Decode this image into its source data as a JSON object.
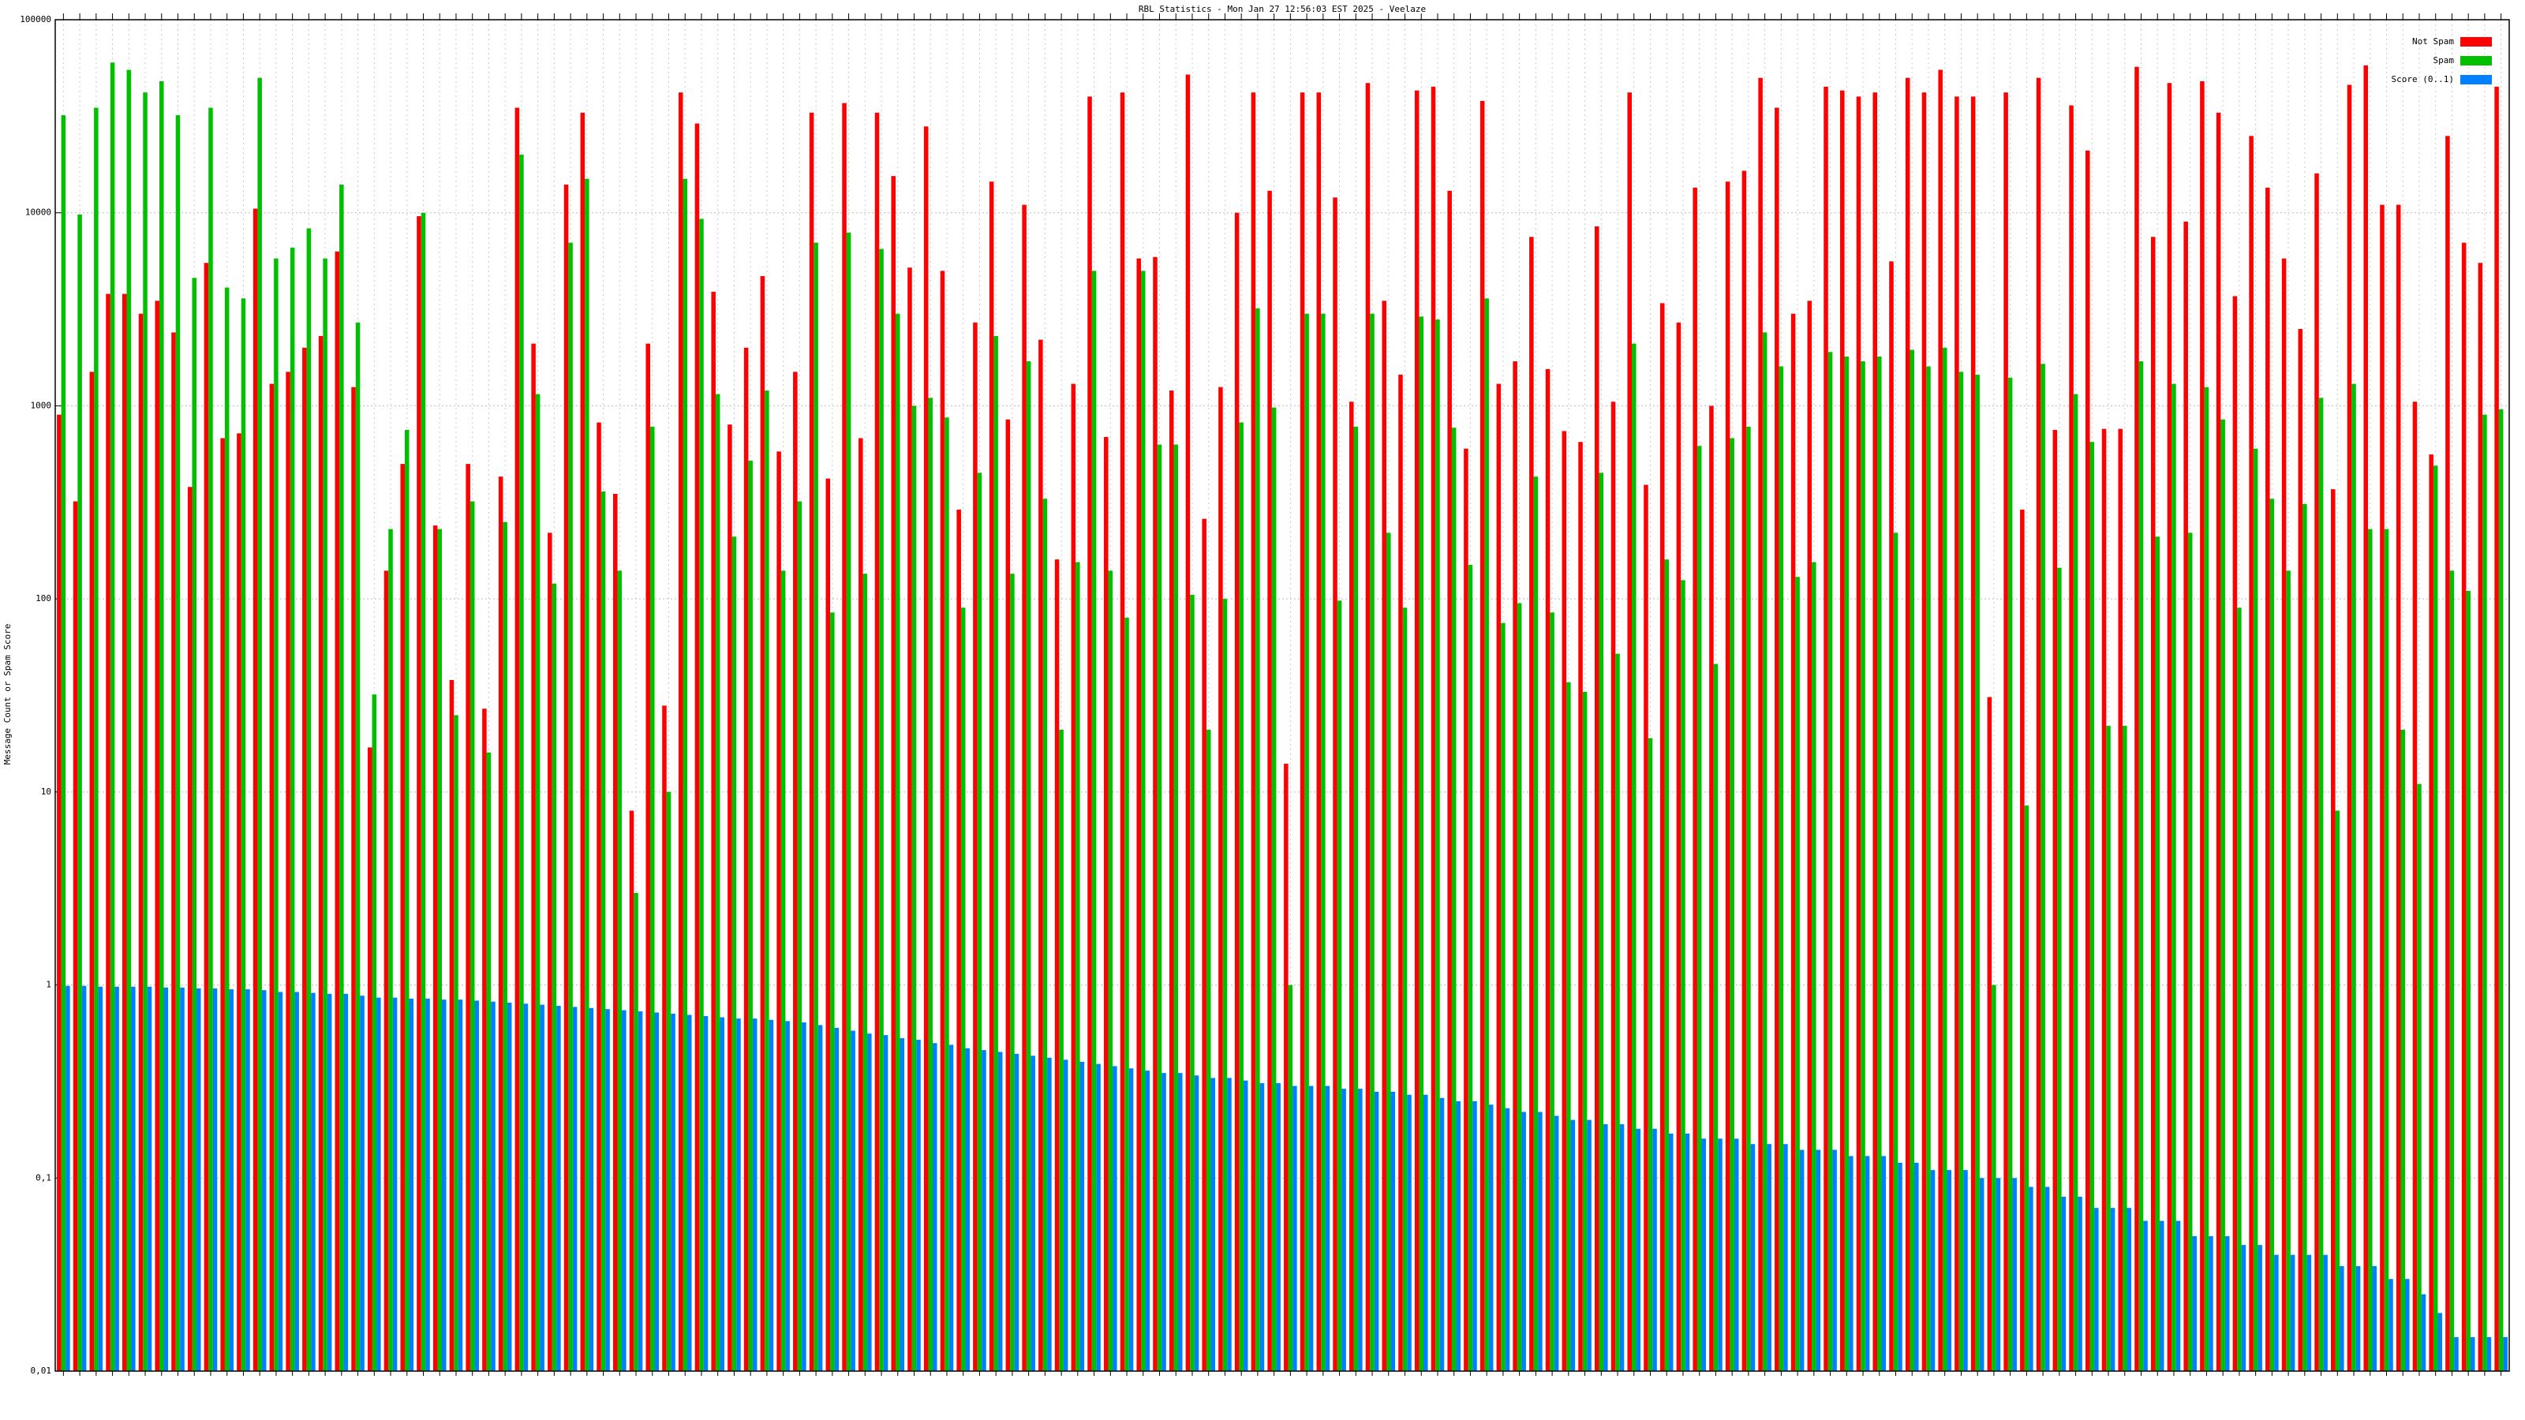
{
  "chart_data": {
    "type": "bar",
    "title": "RBL Statistics - Mon Jan 27 12:56:03 EST 2025 - Veelaze",
    "y_label": "Message Count or Spam Score",
    "log_scale": true,
    "grid": true,
    "legend": "upper right",
    "ylim": [
      0.01,
      100000
    ],
    "yticks": [
      {
        "value": 0.01,
        "label": "0,01"
      },
      {
        "value": 0.1,
        "label": "0,1"
      },
      1,
      10,
      100,
      1000,
      10000,
      100000
    ],
    "categories": [
      null,
      null,
      null,
      null,
      null,
      null,
      null,
      null,
      null,
      null,
      null,
      null,
      null,
      null,
      null,
      null,
      null,
      null,
      null,
      null,
      null,
      null,
      null,
      null,
      null,
      null,
      null,
      null,
      null,
      null,
      null,
      null,
      null,
      null,
      null,
      null,
      null,
      null,
      null,
      null,
      null,
      null,
      null,
      null,
      null,
      null,
      null,
      null,
      null,
      null,
      null,
      null,
      null,
      null,
      null,
      null,
      null,
      null,
      null,
      null,
      null,
      null,
      null,
      null,
      null,
      null,
      null,
      null,
      null,
      null,
      null,
      null,
      null,
      null,
      null,
      null,
      null,
      null,
      null,
      null,
      null,
      null,
      null,
      null,
      null,
      null,
      null,
      null,
      null,
      null,
      null,
      null,
      null,
      null,
      null,
      null,
      null,
      null,
      null,
      null,
      null,
      null,
      null,
      null,
      null,
      null,
      null,
      null,
      null,
      null,
      null,
      null,
      null,
      null,
      null,
      null,
      null,
      null,
      null,
      null,
      null,
      null,
      null,
      null,
      null,
      null,
      null,
      null,
      null,
      null,
      null,
      null,
      null,
      null,
      null,
      null,
      null,
      null,
      null,
      null,
      null,
      null,
      null,
      null,
      null,
      null,
      null,
      null,
      null,
      null
    ],
    "series": [
      {
        "name": "Not Spam",
        "color": "#ff0000",
        "values": [
          900,
          320,
          1500,
          3800,
          3800,
          3000,
          3500,
          2400,
          380,
          5500,
          680,
          720,
          10500,
          1300,
          1500,
          2000,
          2300,
          6300,
          1250,
          17,
          140,
          500,
          9600,
          240,
          38,
          500,
          27,
          430,
          35000,
          2100,
          220,
          14000,
          33000,
          820,
          350,
          8,
          2100,
          28,
          42000,
          29000,
          3900,
          800,
          2000,
          4700,
          580,
          1500,
          33000,
          420,
          37000,
          680,
          33000,
          15500,
          5200,
          28000,
          5000,
          290,
          2700,
          14500,
          850,
          11000,
          2200,
          160,
          1300,
          40000,
          690,
          42000,
          5800,
          5900,
          1200,
          52000,
          260,
          1250,
          10000,
          42000,
          13000,
          14,
          42000,
          42000,
          12000,
          1050,
          47000,
          3500,
          1450,
          43000,
          45000,
          13000,
          600,
          38000,
          1300,
          1700,
          7500,
          1550,
          740,
          650,
          8500,
          1050,
          42000,
          390,
          3400,
          2700,
          13500,
          1000,
          14500,
          16500,
          50000,
          35000,
          3000,
          3500,
          45000,
          43000,
          40000,
          42000,
          5600,
          50000,
          42000,
          55000,
          40000,
          40000,
          31,
          42000,
          290,
          50000,
          750,
          36000,
          21000,
          760,
          760,
          57000,
          7500,
          47000,
          9000,
          48000,
          33000,
          3700,
          25000,
          13500,
          5800,
          2500,
          16000,
          370,
          46000,
          58000,
          11000,
          11000,
          1050,
          560,
          25000,
          7000,
          5500,
          45000
        ]
      },
      {
        "name": "Spam",
        "color": "#00c000",
        "values": [
          32000,
          9800,
          35000,
          60000,
          55000,
          42000,
          48000,
          32000,
          4600,
          35000,
          4100,
          3600,
          50000,
          5800,
          6600,
          8300,
          5800,
          14000,
          2700,
          32,
          230,
          750,
          10000,
          230,
          25,
          320,
          16,
          250,
          20000,
          1150,
          120,
          7000,
          15000,
          360,
          140,
          3,
          780,
          10,
          15000,
          9300,
          1150,
          210,
          520,
          1200,
          140,
          320,
          7000,
          85,
          7900,
          135,
          6500,
          3000,
          1000,
          1100,
          870,
          90,
          450,
          2300,
          135,
          1700,
          330,
          21,
          155,
          5000,
          140,
          80,
          5000,
          630,
          630,
          105,
          21,
          100,
          820,
          3200,
          980,
          1,
          3000,
          3000,
          98,
          780,
          3000,
          220,
          90,
          2900,
          2800,
          770,
          150,
          3600,
          75,
          95,
          430,
          85,
          37,
          33,
          450,
          52,
          2100,
          19,
          160,
          125,
          620,
          46,
          680,
          780,
          2400,
          1600,
          130,
          155,
          1900,
          1800,
          1700,
          1800,
          220,
          1950,
          1600,
          2000,
          1500,
          1450,
          1,
          1400,
          8.5,
          1650,
          145,
          1150,
          650,
          22,
          22,
          1700,
          210,
          1300,
          220,
          1250,
          850,
          90,
          600,
          330,
          140,
          310,
          1100,
          8,
          1300,
          230,
          230,
          21,
          11,
          490,
          140,
          110,
          900,
          960
        ]
      },
      {
        "name": "Score (0..1)",
        "color": "#0080ff",
        "values": [
          0.99,
          0.99,
          0.98,
          0.98,
          0.98,
          0.98,
          0.97,
          0.97,
          0.96,
          0.96,
          0.95,
          0.95,
          0.94,
          0.92,
          0.92,
          0.91,
          0.9,
          0.9,
          0.88,
          0.86,
          0.86,
          0.85,
          0.85,
          0.84,
          0.84,
          0.83,
          0.82,
          0.81,
          0.8,
          0.79,
          0.78,
          0.77,
          0.76,
          0.75,
          0.74,
          0.73,
          0.72,
          0.71,
          0.7,
          0.69,
          0.68,
          0.67,
          0.67,
          0.66,
          0.65,
          0.64,
          0.62,
          0.6,
          0.58,
          0.56,
          0.55,
          0.53,
          0.52,
          0.5,
          0.49,
          0.47,
          0.46,
          0.45,
          0.44,
          0.43,
          0.42,
          0.41,
          0.4,
          0.39,
          0.38,
          0.37,
          0.36,
          0.35,
          0.35,
          0.34,
          0.33,
          0.33,
          0.32,
          0.31,
          0.31,
          0.3,
          0.3,
          0.3,
          0.29,
          0.29,
          0.28,
          0.28,
          0.27,
          0.27,
          0.26,
          0.25,
          0.25,
          0.24,
          0.23,
          0.22,
          0.22,
          0.21,
          0.2,
          0.2,
          0.19,
          0.19,
          0.18,
          0.18,
          0.17,
          0.17,
          0.16,
          0.16,
          0.16,
          0.15,
          0.15,
          0.15,
          0.14,
          0.14,
          0.14,
          0.13,
          0.13,
          0.13,
          0.12,
          0.12,
          0.11,
          0.11,
          0.11,
          0.1,
          0.1,
          0.1,
          0.09,
          0.09,
          0.08,
          0.08,
          0.07,
          0.07,
          0.07,
          0.06,
          0.06,
          0.06,
          0.05,
          0.05,
          0.05,
          0.045,
          0.045,
          0.04,
          0.04,
          0.04,
          0.04,
          0.035,
          0.035,
          0.035,
          0.03,
          0.03,
          0.025,
          0.02,
          0.015,
          0.015,
          0.015,
          0.015
        ]
      }
    ]
  }
}
